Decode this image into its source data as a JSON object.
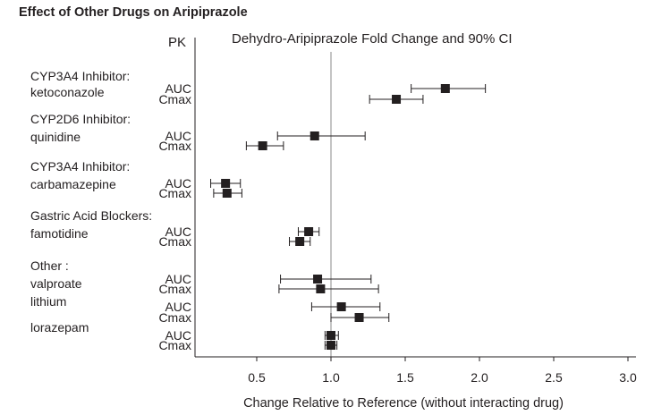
{
  "title": "Effect of Other Drugs on Aripiprazole",
  "colors": {
    "ink": "#231f20",
    "reference_line": "#8a8a8a"
  },
  "chart_data": {
    "type": "forest",
    "title": "Effect of Other Drugs on Aripiprazole",
    "pk_header": "PK",
    "plot_title": "Dehydro-Aripiprazole Fold Change and 90% CI",
    "xlabel": "Change Relative to Reference (without interacting drug)",
    "xlim": [
      0.0,
      3.0
    ],
    "xticks": [
      0.5,
      1.0,
      1.5,
      2.0,
      2.5,
      3.0
    ],
    "xtick_labels": [
      "0.5",
      "1.0",
      "1.5",
      "2.0",
      "2.5",
      "3.0"
    ],
    "reference_value": 1.0,
    "group_labels": [
      {
        "lines": [
          "CYP3A4 Inhibitor:",
          "ketoconazole"
        ]
      },
      {
        "lines": [
          "CYP2D6 Inhibitor:",
          "quinidine"
        ]
      },
      {
        "lines": [
          "CYP3A4 Inhibitor:",
          "carbamazepine"
        ]
      },
      {
        "lines": [
          "Gastric Acid Blockers:",
          "famotidine"
        ]
      },
      {
        "lines": [
          "Other :",
          "valproate"
        ]
      },
      {
        "lines": [
          "lithium"
        ]
      },
      {
        "lines": [
          "lorazepam"
        ]
      }
    ],
    "rows": [
      {
        "drug": "ketoconazole",
        "pk": "AUC",
        "estimate": 1.77,
        "lower": 1.54,
        "upper": 2.04
      },
      {
        "drug": "ketoconazole",
        "pk": "Cmax",
        "estimate": 1.44,
        "lower": 1.26,
        "upper": 1.62
      },
      {
        "drug": "quinidine",
        "pk": "AUC",
        "estimate": 0.89,
        "lower": 0.64,
        "upper": 1.23
      },
      {
        "drug": "quinidine",
        "pk": "Cmax",
        "estimate": 0.54,
        "lower": 0.43,
        "upper": 0.68
      },
      {
        "drug": "carbamazepine",
        "pk": "AUC",
        "estimate": 0.29,
        "lower": 0.19,
        "upper": 0.39
      },
      {
        "drug": "carbamazepine",
        "pk": "Cmax",
        "estimate": 0.3,
        "lower": 0.21,
        "upper": 0.4
      },
      {
        "drug": "famotidine",
        "pk": "AUC",
        "estimate": 0.85,
        "lower": 0.78,
        "upper": 0.92
      },
      {
        "drug": "famotidine",
        "pk": "Cmax",
        "estimate": 0.79,
        "lower": 0.72,
        "upper": 0.86
      },
      {
        "drug": "valproate",
        "pk": "AUC",
        "estimate": 0.91,
        "lower": 0.66,
        "upper": 1.27
      },
      {
        "drug": "valproate",
        "pk": "Cmax",
        "estimate": 0.93,
        "lower": 0.65,
        "upper": 1.32
      },
      {
        "drug": "lithium",
        "pk": "AUC",
        "estimate": 1.07,
        "lower": 0.87,
        "upper": 1.33
      },
      {
        "drug": "lithium",
        "pk": "Cmax",
        "estimate": 1.19,
        "lower": 1.0,
        "upper": 1.39
      },
      {
        "drug": "lorazepam",
        "pk": "AUC",
        "estimate": 1.0,
        "lower": 0.96,
        "upper": 1.05
      },
      {
        "drug": "lorazepam",
        "pk": "Cmax",
        "estimate": 1.0,
        "lower": 0.96,
        "upper": 1.04
      }
    ]
  }
}
